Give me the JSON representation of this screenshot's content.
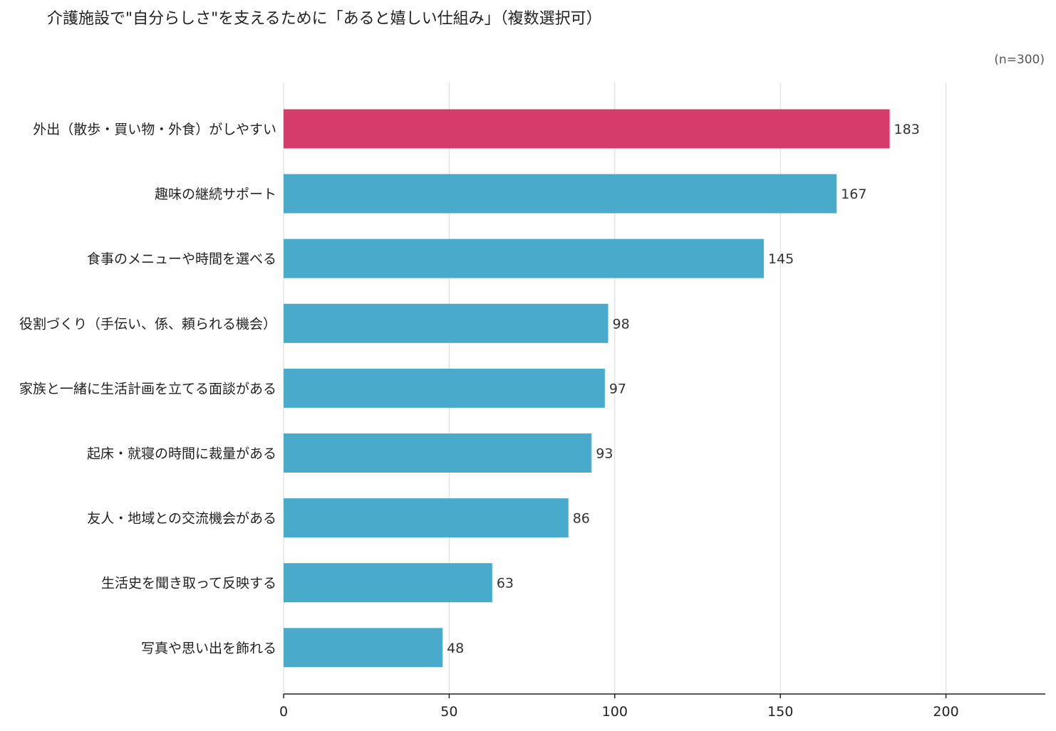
{
  "colors": {
    "highlight": "#d43d6b",
    "bar": "#4aaacb",
    "grid": "#d9d9d9",
    "axis": "#222222",
    "label": "#222222",
    "value": "#333333"
  },
  "chart_data": {
    "type": "bar",
    "orientation": "horizontal",
    "title": "介護施設で\"自分らしさ\"を支えるために「あると嬉しい仕組み」（複数選択可）",
    "sample_note": "(n=300)",
    "xlabel": "",
    "ylabel": "",
    "xlim": [
      0,
      230
    ],
    "xticks": [
      0,
      50,
      100,
      150,
      200
    ],
    "grid": true,
    "highlight_index": 0,
    "categories": [
      "外出（散歩・買い物・外食）がしやすい",
      "趣味の継続サポート",
      "食事のメニューや時間を選べる",
      "役割づくり（手伝い、係、頼られる機会）",
      "家族と一緒に生活計画を立てる面談がある",
      "起床・就寝の時間に裁量がある",
      "友人・地域との交流機会がある",
      "生活史を聞き取って反映する",
      "写真や思い出を飾れる"
    ],
    "values": [
      183,
      167,
      145,
      98,
      97,
      93,
      86,
      63,
      48
    ]
  }
}
